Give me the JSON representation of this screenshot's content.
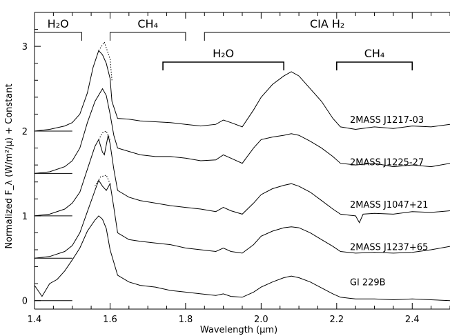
{
  "chart_data": {
    "type": "line",
    "xlabel": "Wavelength (μm)",
    "ylabel": "Normalized F_λ (W/m²/μ) + Constant",
    "xlim": [
      1.4,
      2.5
    ],
    "ylim": [
      -0.1,
      3.4
    ],
    "x_ticks": [
      1.4,
      1.6,
      1.8,
      2.0,
      2.2,
      2.4
    ],
    "x_tick_labels": [
      "1.4",
      "1.6",
      "1.8",
      "2.0",
      "2.2",
      "2.4"
    ],
    "y_ticks": [
      0,
      1,
      2,
      3
    ],
    "y_tick_labels": [
      "0",
      "1",
      "2",
      "3"
    ],
    "band_labels": [
      {
        "text": "H2O",
        "display": "H₂O",
        "x_start": 1.4,
        "x_end": 1.525,
        "row": "upper",
        "weight": "thin"
      },
      {
        "text": "CH4",
        "display": "CH₄",
        "x_start": 1.6,
        "x_end": 1.8,
        "row": "upper",
        "weight": "thin"
      },
      {
        "text": "CIA H2",
        "display": "CIA  H₂",
        "x_start": 1.85,
        "x_end": 2.5,
        "row": "upper",
        "weight": "thin"
      },
      {
        "text": "H2O",
        "display": "H₂O",
        "x_start": 1.74,
        "x_end": 2.06,
        "row": "lower",
        "weight": "thick"
      },
      {
        "text": "CH4",
        "display": "CH₄",
        "x_start": 2.2,
        "x_end": 2.4,
        "row": "lower",
        "weight": "thick"
      }
    ],
    "series": [
      {
        "name": "2MASS J1217-03",
        "offset": 2.0,
        "x": [
          1.4,
          1.44,
          1.48,
          1.5,
          1.52,
          1.54,
          1.555,
          1.57,
          1.58,
          1.59,
          1.6,
          1.605,
          1.62,
          1.65,
          1.68,
          1.72,
          1.76,
          1.8,
          1.84,
          1.88,
          1.9,
          1.92,
          1.95,
          1.98,
          2.0,
          2.03,
          2.06,
          2.08,
          2.1,
          2.13,
          2.16,
          2.19,
          2.21,
          2.25,
          2.3,
          2.35,
          2.4,
          2.45,
          2.5
        ],
        "y": [
          2.0,
          2.02,
          2.06,
          2.1,
          2.2,
          2.45,
          2.75,
          2.95,
          2.9,
          2.8,
          2.62,
          2.35,
          2.15,
          2.14,
          2.12,
          2.11,
          2.1,
          2.08,
          2.06,
          2.08,
          2.13,
          2.1,
          2.05,
          2.25,
          2.4,
          2.55,
          2.65,
          2.7,
          2.65,
          2.5,
          2.35,
          2.15,
          2.05,
          2.02,
          2.05,
          2.03,
          2.06,
          2.05,
          2.08
        ],
        "dotted_x": [
          1.57,
          1.585,
          1.6,
          1.605
        ],
        "dotted_y": [
          2.95,
          3.05,
          2.85,
          2.6
        ]
      },
      {
        "name": "2MASS J1225-27",
        "offset": 1.5,
        "x": [
          1.4,
          1.44,
          1.48,
          1.5,
          1.52,
          1.54,
          1.56,
          1.58,
          1.59,
          1.6,
          1.61,
          1.62,
          1.65,
          1.68,
          1.72,
          1.76,
          1.8,
          1.84,
          1.88,
          1.9,
          1.92,
          1.95,
          1.98,
          2.0,
          2.03,
          2.06,
          2.08,
          2.1,
          2.13,
          2.16,
          2.19,
          2.21,
          2.25,
          2.3,
          2.35,
          2.4,
          2.45,
          2.5
        ],
        "y": [
          1.5,
          1.52,
          1.58,
          1.65,
          1.8,
          2.1,
          2.35,
          2.5,
          2.42,
          2.2,
          1.95,
          1.8,
          1.76,
          1.72,
          1.7,
          1.7,
          1.68,
          1.65,
          1.66,
          1.72,
          1.68,
          1.62,
          1.8,
          1.9,
          1.93,
          1.95,
          1.97,
          1.95,
          1.88,
          1.8,
          1.7,
          1.62,
          1.6,
          1.62,
          1.58,
          1.6,
          1.58,
          1.62
        ]
      },
      {
        "name": "2MASS J1047+21",
        "offset": 1.0,
        "x": [
          1.4,
          1.44,
          1.48,
          1.5,
          1.52,
          1.54,
          1.56,
          1.57,
          1.58,
          1.585,
          1.595,
          1.6,
          1.61,
          1.62,
          1.65,
          1.68,
          1.72,
          1.76,
          1.8,
          1.84,
          1.88,
          1.9,
          1.92,
          1.95,
          1.98,
          2.0,
          2.03,
          2.06,
          2.08,
          2.1,
          2.13,
          2.16,
          2.19,
          2.21,
          2.25,
          2.26,
          2.27,
          2.3,
          2.35,
          2.4,
          2.45,
          2.5
        ],
        "y": [
          1.0,
          1.02,
          1.08,
          1.15,
          1.28,
          1.55,
          1.82,
          1.9,
          1.75,
          1.72,
          1.95,
          1.85,
          1.55,
          1.3,
          1.22,
          1.18,
          1.15,
          1.12,
          1.1,
          1.08,
          1.05,
          1.1,
          1.06,
          1.02,
          1.15,
          1.25,
          1.32,
          1.36,
          1.38,
          1.35,
          1.28,
          1.18,
          1.08,
          1.02,
          1.0,
          0.92,
          1.02,
          1.03,
          1.02,
          1.05,
          1.04,
          1.06
        ],
        "dotted_x": [
          1.57,
          1.58,
          1.59,
          1.6
        ],
        "dotted_y": [
          1.9,
          1.98,
          2.0,
          1.9
        ]
      },
      {
        "name": "2MASS J1237+65",
        "offset": 0.5,
        "x": [
          1.4,
          1.44,
          1.48,
          1.5,
          1.52,
          1.54,
          1.56,
          1.57,
          1.58,
          1.59,
          1.6,
          1.61,
          1.62,
          1.65,
          1.68,
          1.72,
          1.76,
          1.8,
          1.84,
          1.88,
          1.9,
          1.92,
          1.95,
          1.98,
          2.0,
          2.03,
          2.06,
          2.08,
          2.1,
          2.13,
          2.16,
          2.19,
          2.21,
          2.25,
          2.3,
          2.35,
          2.4,
          2.45,
          2.5
        ],
        "y": [
          0.5,
          0.52,
          0.58,
          0.65,
          0.8,
          1.05,
          1.3,
          1.42,
          1.35,
          1.3,
          1.38,
          1.1,
          0.8,
          0.72,
          0.7,
          0.68,
          0.66,
          0.62,
          0.6,
          0.58,
          0.62,
          0.58,
          0.56,
          0.66,
          0.76,
          0.82,
          0.86,
          0.87,
          0.86,
          0.8,
          0.72,
          0.64,
          0.58,
          0.56,
          0.57,
          0.56,
          0.57,
          0.6,
          0.64
        ],
        "dotted_x": [
          1.56,
          1.575,
          1.59,
          1.6
        ],
        "dotted_y": [
          1.35,
          1.46,
          1.48,
          1.38
        ]
      },
      {
        "name": "Gl 229B",
        "offset": 0.0,
        "x": [
          1.4,
          1.42,
          1.44,
          1.46,
          1.48,
          1.5,
          1.52,
          1.54,
          1.56,
          1.57,
          1.58,
          1.59,
          1.6,
          1.62,
          1.65,
          1.68,
          1.72,
          1.76,
          1.8,
          1.84,
          1.88,
          1.9,
          1.92,
          1.95,
          1.98,
          2.0,
          2.03,
          2.06,
          2.08,
          2.1,
          2.13,
          2.16,
          2.19,
          2.21,
          2.25,
          2.3,
          2.35,
          2.4,
          2.45,
          2.5
        ],
        "y": [
          0.18,
          0.05,
          0.2,
          0.25,
          0.35,
          0.48,
          0.62,
          0.82,
          0.95,
          1.0,
          0.96,
          0.85,
          0.6,
          0.3,
          0.22,
          0.18,
          0.16,
          0.12,
          0.1,
          0.08,
          0.06,
          0.08,
          0.05,
          0.04,
          0.1,
          0.16,
          0.22,
          0.27,
          0.29,
          0.27,
          0.22,
          0.15,
          0.08,
          0.04,
          0.02,
          0.02,
          0.01,
          0.02,
          0.01,
          0.0
        ]
      }
    ]
  }
}
